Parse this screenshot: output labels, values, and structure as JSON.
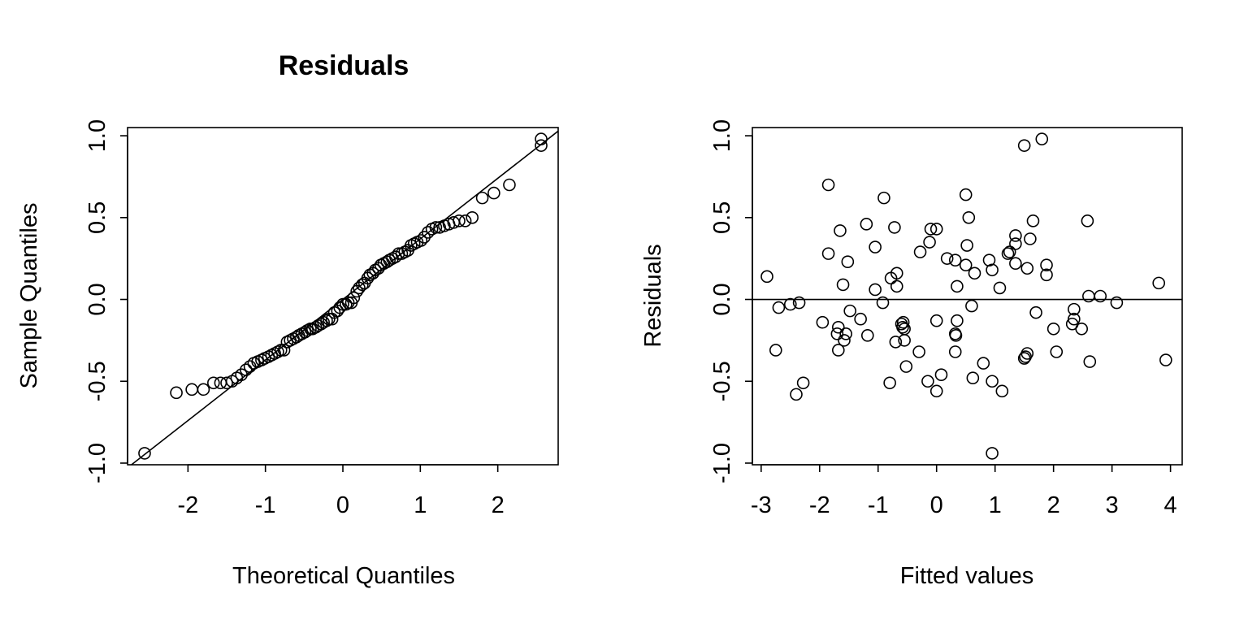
{
  "chart_data": [
    {
      "type": "scatter",
      "title": "Residuals",
      "xlabel": "Theoretical Quantiles",
      "ylabel": "Sample Quantiles",
      "xlim": [
        -2.78,
        2.78
      ],
      "ylim": [
        -1.01,
        1.05
      ],
      "xticks": [
        -2,
        -1,
        0,
        1,
        2
      ],
      "xtick_labels": [
        "-2",
        "-1",
        "0",
        "1",
        "2"
      ],
      "yticks": [
        -1.0,
        -0.5,
        0.0,
        0.5,
        1.0
      ],
      "ytick_labels": [
        "-1.0",
        "-0.5",
        "0.0",
        "0.5",
        "1.0"
      ],
      "grid": false,
      "reference_line": {
        "intercept": 0.0,
        "slope": 0.37
      },
      "points": [
        [
          -2.56,
          -0.94
        ],
        [
          -2.15,
          -0.57
        ],
        [
          -1.95,
          -0.55
        ],
        [
          -1.8,
          -0.55
        ],
        [
          -1.67,
          -0.51
        ],
        [
          -1.58,
          -0.51
        ],
        [
          -1.5,
          -0.51
        ],
        [
          -1.43,
          -0.5
        ],
        [
          -1.37,
          -0.48
        ],
        [
          -1.31,
          -0.46
        ],
        [
          -1.25,
          -0.43
        ],
        [
          -1.2,
          -0.41
        ],
        [
          -1.15,
          -0.39
        ],
        [
          -1.1,
          -0.38
        ],
        [
          -1.05,
          -0.37
        ],
        [
          -1.01,
          -0.36
        ],
        [
          -0.96,
          -0.35
        ],
        [
          -0.92,
          -0.34
        ],
        [
          -0.88,
          -0.33
        ],
        [
          -0.84,
          -0.32
        ],
        [
          -0.8,
          -0.31
        ],
        [
          -0.76,
          -0.31
        ],
        [
          -0.72,
          -0.26
        ],
        [
          -0.68,
          -0.25
        ],
        [
          -0.64,
          -0.24
        ],
        [
          -0.6,
          -0.23
        ],
        [
          -0.57,
          -0.22
        ],
        [
          -0.53,
          -0.21
        ],
        [
          -0.49,
          -0.2
        ],
        [
          -0.46,
          -0.19
        ],
        [
          -0.42,
          -0.18
        ],
        [
          -0.39,
          -0.18
        ],
        [
          -0.35,
          -0.17
        ],
        [
          -0.32,
          -0.16
        ],
        [
          -0.28,
          -0.15
        ],
        [
          -0.25,
          -0.14
        ],
        [
          -0.21,
          -0.13
        ],
        [
          -0.18,
          -0.12
        ],
        [
          -0.14,
          -0.12
        ],
        [
          -0.11,
          -0.08
        ],
        [
          -0.07,
          -0.07
        ],
        [
          -0.04,
          -0.05
        ],
        [
          0.0,
          -0.03
        ],
        [
          0.04,
          -0.03
        ],
        [
          0.07,
          -0.02
        ],
        [
          0.11,
          -0.02
        ],
        [
          0.14,
          0.01
        ],
        [
          0.18,
          0.05
        ],
        [
          0.21,
          0.07
        ],
        [
          0.25,
          0.09
        ],
        [
          0.28,
          0.1
        ],
        [
          0.32,
          0.13
        ],
        [
          0.35,
          0.15
        ],
        [
          0.39,
          0.16
        ],
        [
          0.42,
          0.18
        ],
        [
          0.46,
          0.19
        ],
        [
          0.49,
          0.21
        ],
        [
          0.53,
          0.22
        ],
        [
          0.57,
          0.23
        ],
        [
          0.6,
          0.24
        ],
        [
          0.64,
          0.25
        ],
        [
          0.68,
          0.26
        ],
        [
          0.72,
          0.28
        ],
        [
          0.76,
          0.28
        ],
        [
          0.8,
          0.29
        ],
        [
          0.84,
          0.3
        ],
        [
          0.88,
          0.33
        ],
        [
          0.92,
          0.34
        ],
        [
          0.96,
          0.35
        ],
        [
          1.01,
          0.36
        ],
        [
          1.05,
          0.38
        ],
        [
          1.1,
          0.41
        ],
        [
          1.15,
          0.43
        ],
        [
          1.2,
          0.44
        ],
        [
          1.25,
          0.44
        ],
        [
          1.31,
          0.45
        ],
        [
          1.37,
          0.46
        ],
        [
          1.43,
          0.47
        ],
        [
          1.5,
          0.48
        ],
        [
          1.58,
          0.48
        ],
        [
          1.67,
          0.5
        ],
        [
          1.8,
          0.62
        ],
        [
          1.95,
          0.65
        ],
        [
          2.15,
          0.7
        ],
        [
          2.56,
          0.94
        ],
        [
          2.56,
          0.98
        ]
      ]
    },
    {
      "type": "scatter",
      "title": "",
      "xlabel": "Fitted values",
      "ylabel": "Residuals",
      "xlim": [
        -3.15,
        4.2
      ],
      "ylim": [
        -1.01,
        1.05
      ],
      "xticks": [
        -3,
        -2,
        -1,
        0,
        1,
        2,
        3,
        4
      ],
      "xtick_labels": [
        "-3",
        "-2",
        "-1",
        "0",
        "1",
        "2",
        "3",
        "4"
      ],
      "yticks": [
        -1.0,
        -0.5,
        0.0,
        0.5,
        1.0
      ],
      "ytick_labels": [
        "-1.0",
        "-0.5",
        "0.0",
        "0.5",
        "1.0"
      ],
      "grid": false,
      "reference_line": {
        "intercept": 0.0,
        "slope": 0.0
      },
      "points": [
        [
          -2.9,
          0.14
        ],
        [
          -2.75,
          -0.31
        ],
        [
          -2.7,
          -0.05
        ],
        [
          -2.5,
          -0.03
        ],
        [
          -2.4,
          -0.58
        ],
        [
          -2.35,
          -0.02
        ],
        [
          -2.28,
          -0.51
        ],
        [
          -1.95,
          -0.14
        ],
        [
          -1.85,
          0.7
        ],
        [
          -1.85,
          0.28
        ],
        [
          -1.7,
          -0.21
        ],
        [
          -1.68,
          -0.17
        ],
        [
          -1.68,
          -0.31
        ],
        [
          -1.65,
          0.42
        ],
        [
          -1.6,
          0.09
        ],
        [
          -1.58,
          -0.25
        ],
        [
          -1.55,
          -0.21
        ],
        [
          -1.52,
          0.23
        ],
        [
          -1.48,
          -0.07
        ],
        [
          -1.3,
          -0.12
        ],
        [
          -1.2,
          0.46
        ],
        [
          -1.18,
          -0.22
        ],
        [
          -1.05,
          0.32
        ],
        [
          -1.05,
          0.06
        ],
        [
          -0.9,
          0.62
        ],
        [
          -0.92,
          -0.02
        ],
        [
          -0.8,
          -0.51
        ],
        [
          -0.78,
          0.13
        ],
        [
          -0.72,
          0.44
        ],
        [
          -0.7,
          -0.26
        ],
        [
          -0.68,
          0.16
        ],
        [
          -0.68,
          0.08
        ],
        [
          -0.6,
          -0.15
        ],
        [
          -0.58,
          -0.17
        ],
        [
          -0.57,
          -0.14
        ],
        [
          -0.55,
          -0.18
        ],
        [
          -0.55,
          -0.25
        ],
        [
          -0.52,
          -0.41
        ],
        [
          -0.3,
          -0.32
        ],
        [
          -0.28,
          0.29
        ],
        [
          -0.15,
          -0.5
        ],
        [
          -0.12,
          0.35
        ],
        [
          -0.1,
          0.43
        ],
        [
          0.0,
          0.43
        ],
        [
          0.0,
          -0.56
        ],
        [
          0.0,
          -0.13
        ],
        [
          0.08,
          -0.46
        ],
        [
          0.18,
          0.25
        ],
        [
          0.32,
          0.24
        ],
        [
          0.32,
          -0.21
        ],
        [
          0.32,
          -0.32
        ],
        [
          0.33,
          -0.22
        ],
        [
          0.35,
          -0.13
        ],
        [
          0.35,
          0.08
        ],
        [
          0.5,
          0.64
        ],
        [
          0.5,
          0.21
        ],
        [
          0.52,
          0.33
        ],
        [
          0.55,
          0.5
        ],
        [
          0.6,
          -0.04
        ],
        [
          0.62,
          -0.48
        ],
        [
          0.65,
          0.16
        ],
        [
          0.8,
          -0.39
        ],
        [
          0.9,
          0.24
        ],
        [
          0.95,
          0.18
        ],
        [
          0.95,
          -0.5
        ],
        [
          0.95,
          -0.94
        ],
        [
          1.08,
          0.07
        ],
        [
          1.12,
          -0.56
        ],
        [
          1.22,
          0.28
        ],
        [
          1.25,
          0.29
        ],
        [
          1.35,
          0.22
        ],
        [
          1.35,
          0.34
        ],
        [
          1.35,
          0.39
        ],
        [
          1.5,
          0.94
        ],
        [
          1.5,
          -0.36
        ],
        [
          1.52,
          -0.35
        ],
        [
          1.55,
          -0.33
        ],
        [
          1.55,
          0.19
        ],
        [
          1.6,
          0.37
        ],
        [
          1.65,
          0.48
        ],
        [
          1.7,
          -0.08
        ],
        [
          1.8,
          0.98
        ],
        [
          1.88,
          0.21
        ],
        [
          1.88,
          0.15
        ],
        [
          2.0,
          -0.18
        ],
        [
          2.05,
          -0.32
        ],
        [
          2.32,
          -0.15
        ],
        [
          2.35,
          -0.06
        ],
        [
          2.35,
          -0.12
        ],
        [
          2.48,
          -0.18
        ],
        [
          2.58,
          0.48
        ],
        [
          2.6,
          0.02
        ],
        [
          2.62,
          -0.38
        ],
        [
          2.8,
          0.02
        ],
        [
          3.08,
          -0.02
        ],
        [
          3.8,
          0.1
        ],
        [
          3.92,
          -0.37
        ]
      ]
    }
  ]
}
